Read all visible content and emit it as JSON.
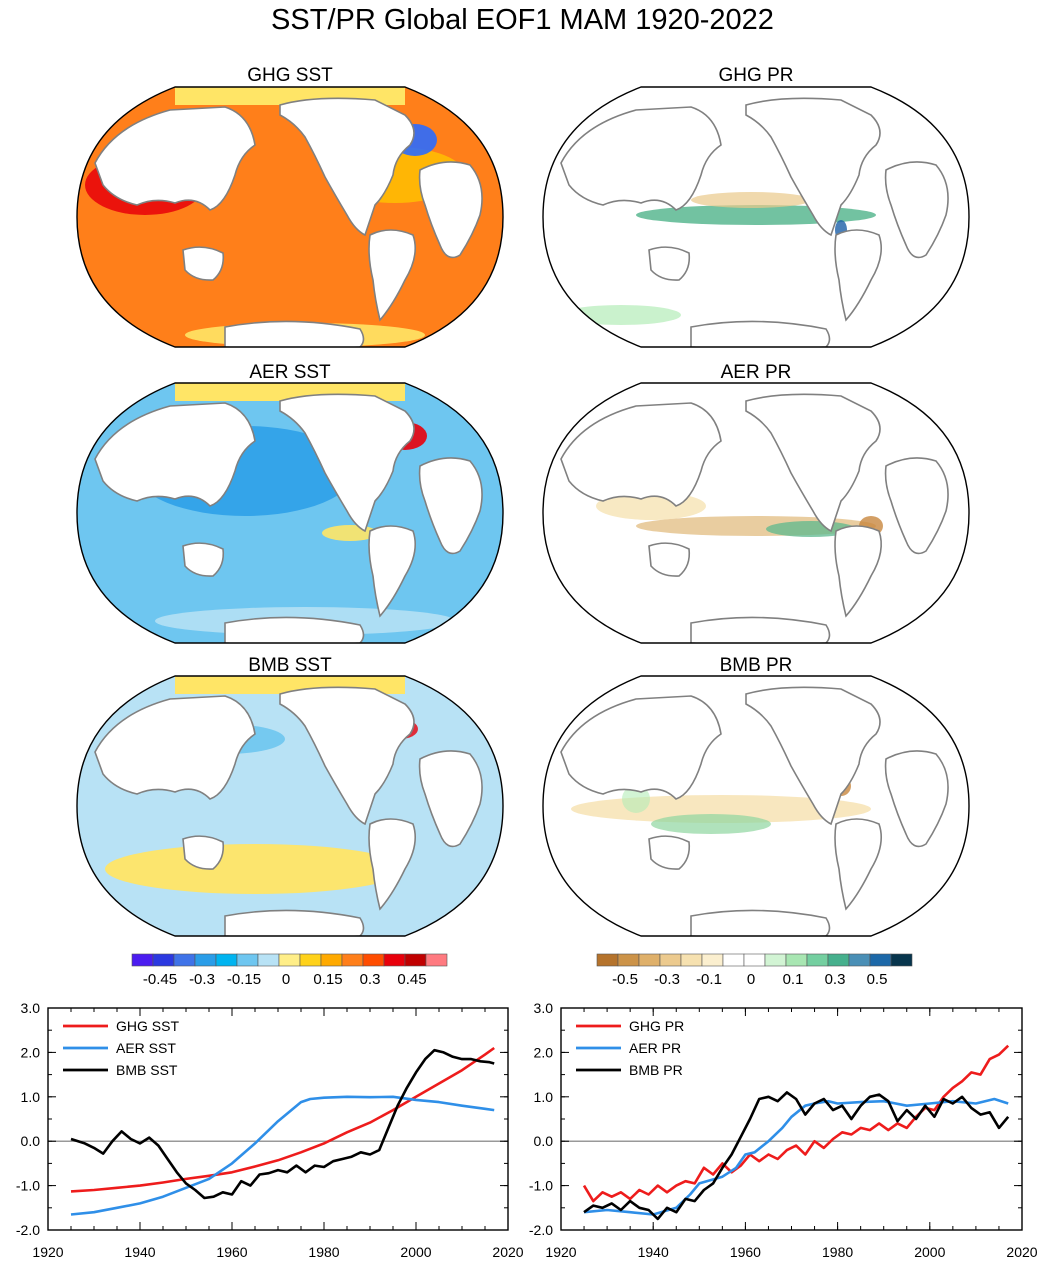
{
  "title": "SST/PR Global EOF1 MAM 1920-2022",
  "maps": [
    {
      "title": "GHG SST",
      "field": "sst",
      "base": "#ff7f1a",
      "blobs": [
        {
          "c": "#e8000b",
          "o": 0.85
        },
        {
          "c": "#ffc400",
          "o": 0.8
        },
        {
          "c": "#ffe566",
          "o": 0.9
        },
        {
          "c": "#2b6bff",
          "o": 0.9
        }
      ]
    },
    {
      "title": "GHG PR",
      "field": "pr",
      "base": "#ffffff",
      "blobs": [
        {
          "c": "#4fb38a",
          "o": 0.8
        },
        {
          "c": "#e9c98a",
          "o": 0.7
        },
        {
          "c": "#b4ecb8",
          "o": 0.7
        },
        {
          "c": "#1c5fa8",
          "o": 0.8
        }
      ]
    },
    {
      "title": "AER SST",
      "field": "sst",
      "base": "#6ec6f0",
      "blobs": [
        {
          "c": "#2a9de8",
          "o": 0.85
        },
        {
          "c": "#b8e2f5",
          "o": 0.85
        },
        {
          "c": "#ffe566",
          "o": 0.9
        },
        {
          "c": "#e8000b",
          "o": 0.9
        }
      ]
    },
    {
      "title": "AER PR",
      "field": "pr",
      "base": "#ffffff",
      "blobs": [
        {
          "c": "#e0b878",
          "o": 0.7
        },
        {
          "c": "#5cb88e",
          "o": 0.75
        },
        {
          "c": "#f5dfaa",
          "o": 0.7
        },
        {
          "c": "#c8873f",
          "o": 0.8
        }
      ]
    },
    {
      "title": "BMB SST",
      "field": "sst",
      "base": "#b8e2f5",
      "blobs": [
        {
          "c": "#ffe566",
          "o": 0.95
        },
        {
          "c": "#6ec6f0",
          "o": 0.9
        },
        {
          "c": "#2a9de8",
          "o": 0.85
        },
        {
          "c": "#e8000b",
          "o": 0.8
        }
      ]
    },
    {
      "title": "BMB PR",
      "field": "pr",
      "base": "#ffffff",
      "blobs": [
        {
          "c": "#f5dfaa",
          "o": 0.75
        },
        {
          "c": "#8fd6a0",
          "o": 0.7
        },
        {
          "c": "#c8873f",
          "o": 0.8
        },
        {
          "c": "#b4ecb8",
          "o": 0.6
        }
      ]
    }
  ],
  "colorbars": {
    "sst": {
      "colors": [
        "#4b1cf0",
        "#2b39e0",
        "#3f73e8",
        "#2a9de8",
        "#00b4f0",
        "#6ec6f0",
        "#b8e2f5",
        "#ffee88",
        "#ffd21a",
        "#ffaa00",
        "#ff7f1a",
        "#ff4d00",
        "#e8000b",
        "#c00000",
        "#ff7a80"
      ],
      "labels": [
        "-0.45",
        "-0.3",
        "-0.15",
        "0",
        "0.15",
        "0.3",
        "0.45"
      ]
    },
    "pr": {
      "colors": [
        "#b5732c",
        "#cc9349",
        "#dfb06a",
        "#ecca8e",
        "#f6e1b0",
        "#fbefcf",
        "#ffffff",
        "#ffffff",
        "#d2f4d4",
        "#a8e6b2",
        "#74cfa0",
        "#46b08d",
        "#4a8fb6",
        "#1c68a8",
        "#07354d"
      ],
      "labels": [
        "-0.5",
        "-0.3",
        "-0.1",
        "0",
        "0.1",
        "0.3",
        "0.5"
      ]
    }
  },
  "chart_data": [
    {
      "type": "line",
      "ylim": [
        -2.0,
        3.0
      ],
      "xlim": [
        1920,
        2020
      ],
      "ytick_labels": [
        "3.0",
        "2.0",
        "1.0",
        "0.0",
        "-1.0",
        "-2.0"
      ],
      "xtick_labels": [
        "1920",
        "1940",
        "1960",
        "1980",
        "2000",
        "2020"
      ],
      "series": [
        {
          "name": "GHG SST",
          "color": "#ee1c1c",
          "x": [
            1925,
            1930,
            1935,
            1940,
            1945,
            1950,
            1955,
            1960,
            1965,
            1970,
            1975,
            1980,
            1985,
            1990,
            1995,
            2000,
            2005,
            2010,
            2015,
            2017
          ],
          "y": [
            -1.13,
            -1.1,
            -1.05,
            -1.0,
            -0.93,
            -0.85,
            -0.78,
            -0.7,
            -0.57,
            -0.43,
            -0.25,
            -0.05,
            0.2,
            0.42,
            0.7,
            1.0,
            1.3,
            1.6,
            1.95,
            2.1
          ]
        },
        {
          "name": "AER SST",
          "color": "#2f8fe8",
          "x": [
            1925,
            1930,
            1935,
            1940,
            1945,
            1950,
            1955,
            1960,
            1965,
            1970,
            1975,
            1977,
            1980,
            1985,
            1990,
            1995,
            2000,
            2005,
            2010,
            2015,
            2017
          ],
          "y": [
            -1.65,
            -1.6,
            -1.5,
            -1.4,
            -1.25,
            -1.05,
            -0.85,
            -0.5,
            -0.05,
            0.45,
            0.88,
            0.95,
            0.98,
            1.0,
            0.99,
            1.0,
            0.93,
            0.88,
            0.8,
            0.73,
            0.7
          ]
        },
        {
          "name": "BMB SST",
          "color": "#000000",
          "x": [
            1925,
            1928,
            1930,
            1932,
            1934,
            1936,
            1938,
            1940,
            1942,
            1944,
            1946,
            1948,
            1950,
            1952,
            1954,
            1956,
            1958,
            1960,
            1962,
            1964,
            1966,
            1968,
            1970,
            1972,
            1974,
            1976,
            1978,
            1980,
            1982,
            1984,
            1986,
            1988,
            1990,
            1992,
            1994,
            1996,
            1998,
            2000,
            2002,
            2004,
            2006,
            2008,
            2010,
            2012,
            2014,
            2016,
            2017
          ],
          "y": [
            0.05,
            -0.05,
            -0.15,
            -0.28,
            0.0,
            0.22,
            0.05,
            -0.05,
            0.08,
            -0.1,
            -0.4,
            -0.7,
            -0.95,
            -1.1,
            -1.28,
            -1.25,
            -1.15,
            -1.2,
            -0.9,
            -1.0,
            -0.75,
            -0.72,
            -0.65,
            -0.7,
            -0.55,
            -0.7,
            -0.55,
            -0.58,
            -0.45,
            -0.4,
            -0.35,
            -0.25,
            -0.3,
            -0.2,
            0.3,
            0.8,
            1.2,
            1.55,
            1.85,
            2.05,
            2.0,
            1.9,
            1.85,
            1.85,
            1.8,
            1.78,
            1.75
          ]
        }
      ],
      "legend": [
        "GHG SST",
        "AER SST",
        "BMB SST"
      ],
      "legend_position": "top-left"
    },
    {
      "type": "line",
      "ylim": [
        -2.0,
        3.0
      ],
      "xlim": [
        1920,
        2020
      ],
      "ytick_labels": [
        "3.0",
        "2.0",
        "1.0",
        "0.0",
        "-1.0",
        "-2.0"
      ],
      "xtick_labels": [
        "1920",
        "1940",
        "1960",
        "1980",
        "2000",
        "2020"
      ],
      "series": [
        {
          "name": "GHG PR",
          "color": "#ee1c1c",
          "x": [
            1925,
            1927,
            1929,
            1931,
            1933,
            1935,
            1937,
            1939,
            1941,
            1943,
            1945,
            1947,
            1949,
            1951,
            1953,
            1955,
            1957,
            1959,
            1961,
            1963,
            1965,
            1967,
            1969,
            1971,
            1973,
            1975,
            1977,
            1979,
            1981,
            1983,
            1985,
            1987,
            1989,
            1991,
            1993,
            1995,
            1997,
            1999,
            2001,
            2003,
            2005,
            2007,
            2009,
            2011,
            2013,
            2015,
            2017
          ],
          "y": [
            -1.0,
            -1.35,
            -1.15,
            -1.25,
            -1.15,
            -1.3,
            -1.1,
            -1.2,
            -1.0,
            -1.15,
            -1.0,
            -0.9,
            -0.95,
            -0.6,
            -0.75,
            -0.5,
            -0.7,
            -0.55,
            -0.3,
            -0.45,
            -0.3,
            -0.4,
            -0.2,
            -0.1,
            -0.3,
            0.0,
            -0.15,
            0.05,
            0.2,
            0.15,
            0.3,
            0.25,
            0.4,
            0.25,
            0.4,
            0.3,
            0.55,
            0.75,
            0.7,
            1.0,
            1.2,
            1.35,
            1.55,
            1.5,
            1.85,
            1.95,
            2.15
          ]
        },
        {
          "name": "AER PR",
          "color": "#2f8fe8",
          "x": [
            1925,
            1930,
            1935,
            1940,
            1945,
            1948,
            1950,
            1955,
            1958,
            1960,
            1962,
            1965,
            1968,
            1970,
            1973,
            1975,
            1978,
            1980,
            1985,
            1990,
            1995,
            2000,
            2005,
            2010,
            2014,
            2017
          ],
          "y": [
            -1.6,
            -1.55,
            -1.6,
            -1.65,
            -1.5,
            -1.2,
            -0.95,
            -0.8,
            -0.6,
            -0.3,
            -0.25,
            0.0,
            0.3,
            0.55,
            0.8,
            0.85,
            0.9,
            0.85,
            0.88,
            0.9,
            0.8,
            0.85,
            0.9,
            0.85,
            0.95,
            0.85
          ]
        },
        {
          "name": "BMB PR",
          "color": "#000000",
          "x": [
            1925,
            1927,
            1929,
            1931,
            1933,
            1935,
            1937,
            1939,
            1941,
            1943,
            1945,
            1947,
            1949,
            1951,
            1953,
            1955,
            1957,
            1959,
            1961,
            1963,
            1965,
            1967,
            1969,
            1971,
            1973,
            1975,
            1977,
            1979,
            1981,
            1983,
            1985,
            1987,
            1989,
            1991,
            1993,
            1995,
            1997,
            1999,
            2001,
            2003,
            2005,
            2007,
            2009,
            2011,
            2013,
            2015,
            2017
          ],
          "y": [
            -1.6,
            -1.45,
            -1.5,
            -1.4,
            -1.55,
            -1.35,
            -1.5,
            -1.55,
            -1.75,
            -1.5,
            -1.6,
            -1.3,
            -1.35,
            -1.1,
            -0.95,
            -0.6,
            -0.3,
            0.1,
            0.5,
            0.95,
            1.0,
            0.9,
            1.1,
            0.95,
            0.6,
            0.85,
            0.95,
            0.7,
            0.8,
            0.5,
            0.8,
            1.0,
            1.05,
            0.9,
            0.45,
            0.7,
            0.5,
            0.8,
            0.55,
            0.95,
            0.85,
            1.0,
            0.75,
            0.6,
            0.65,
            0.3,
            0.55
          ]
        }
      ],
      "legend": [
        "GHG PR",
        "AER PR",
        "BMB PR"
      ],
      "legend_position": "top-left"
    }
  ]
}
